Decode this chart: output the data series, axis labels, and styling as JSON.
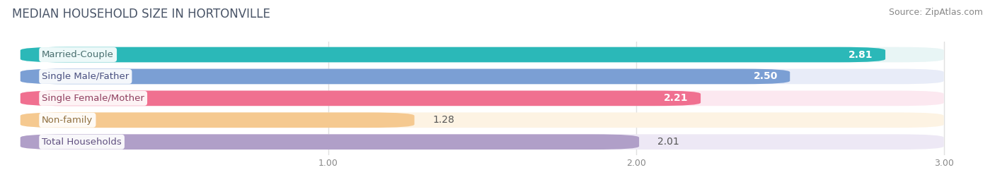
{
  "title": "MEDIAN HOUSEHOLD SIZE IN HORTONVILLE",
  "source": "Source: ZipAtlas.com",
  "categories": [
    "Married-Couple",
    "Single Male/Father",
    "Single Female/Mother",
    "Non-family",
    "Total Households"
  ],
  "values": [
    2.81,
    2.5,
    2.21,
    1.28,
    2.01
  ],
  "bar_colors": [
    "#2bb8b8",
    "#7b9fd4",
    "#f07090",
    "#f5c990",
    "#b09fc8"
  ],
  "bar_bg_colors": [
    "#e8f5f5",
    "#e8ecf8",
    "#fce8f0",
    "#fdf3e3",
    "#ede8f5"
  ],
  "label_text_colors": [
    "#4a7070",
    "#4a5080",
    "#904060",
    "#907040",
    "#605080"
  ],
  "xlim_data": [
    0,
    3.0
  ],
  "xlim_display": [
    -0.05,
    3.15
  ],
  "xticks": [
    1.0,
    2.0,
    3.0
  ],
  "title_fontsize": 12,
  "source_fontsize": 9,
  "label_fontsize": 9.5,
  "value_fontsize": 10,
  "background_color": "#ffffff",
  "bar_gap": 0.18,
  "bar_height": 0.7
}
